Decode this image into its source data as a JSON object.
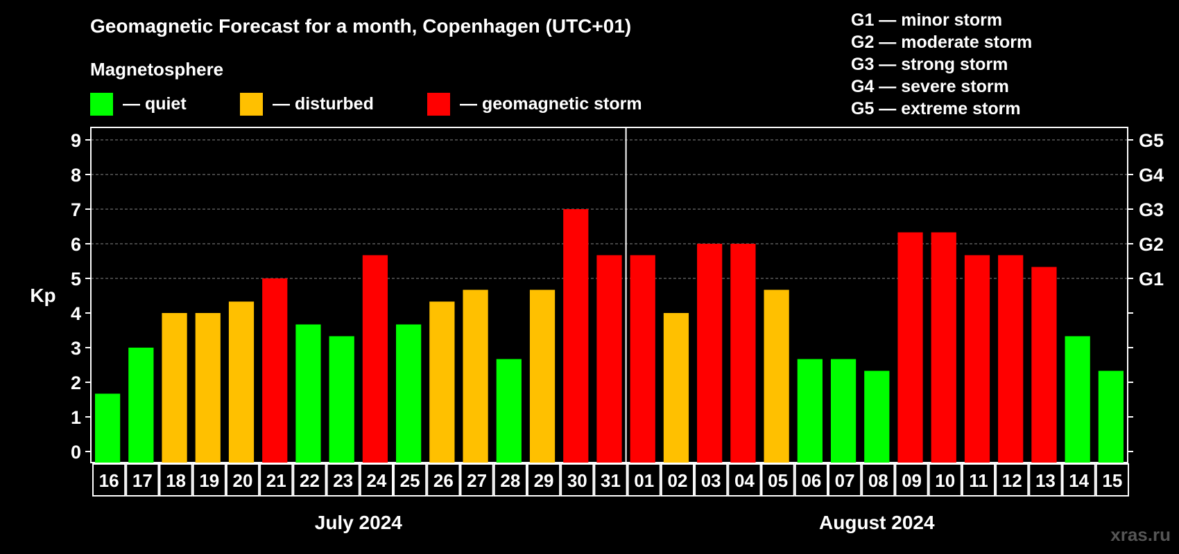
{
  "title": "Geomagnetic Forecast for a month, Copenhagen (UTC+01)",
  "legend": {
    "heading": "Magnetosphere",
    "items": [
      {
        "label": "— quiet",
        "color": "#00ff00"
      },
      {
        "label": "— disturbed",
        "color": "#ffc000"
      },
      {
        "label": "— geomagnetic storm",
        "color": "#ff0000"
      }
    ]
  },
  "storm_scale": [
    "G1 — minor storm",
    "G2 — moderate storm",
    "G3 — strong storm",
    "G4 — severe storm",
    "G5 — extreme storm"
  ],
  "watermark": "xras.ru",
  "chart_data": {
    "type": "bar",
    "ylabel": "Kp",
    "ylim": [
      0,
      9
    ],
    "yticks": [
      0,
      1,
      2,
      3,
      4,
      5,
      6,
      7,
      8,
      9
    ],
    "right_axis_labels": [
      {
        "kp": 5,
        "label": "G1"
      },
      {
        "kp": 6,
        "label": "G2"
      },
      {
        "kp": 7,
        "label": "G3"
      },
      {
        "kp": 8,
        "label": "G4"
      },
      {
        "kp": 9,
        "label": "G5"
      }
    ],
    "grid": true,
    "categories": [
      "16",
      "17",
      "18",
      "19",
      "20",
      "21",
      "22",
      "23",
      "24",
      "25",
      "26",
      "27",
      "28",
      "29",
      "30",
      "31",
      "01",
      "02",
      "03",
      "04",
      "05",
      "06",
      "07",
      "08",
      "09",
      "10",
      "11",
      "12",
      "13",
      "14",
      "15"
    ],
    "values": [
      1.67,
      3.0,
      4.0,
      4.0,
      4.33,
      5.0,
      3.67,
      3.33,
      5.67,
      3.67,
      4.33,
      4.67,
      2.67,
      4.67,
      7.0,
      5.67,
      5.67,
      4.0,
      6.0,
      6.0,
      4.67,
      2.67,
      2.67,
      2.33,
      6.33,
      6.33,
      5.67,
      5.67,
      5.33,
      3.33,
      2.33
    ],
    "levels": [
      "quiet",
      "quiet",
      "disturbed",
      "disturbed",
      "disturbed",
      "storm",
      "quiet",
      "quiet",
      "storm",
      "quiet",
      "disturbed",
      "disturbed",
      "quiet",
      "disturbed",
      "storm",
      "storm",
      "storm",
      "disturbed",
      "storm",
      "storm",
      "disturbed",
      "quiet",
      "quiet",
      "quiet",
      "storm",
      "storm",
      "storm",
      "storm",
      "storm",
      "quiet",
      "quiet"
    ],
    "level_colors": {
      "quiet": "#00ff00",
      "disturbed": "#ffc000",
      "storm": "#ff0000"
    },
    "months": [
      {
        "label": "July 2024",
        "count": 16
      },
      {
        "label": "August 2024",
        "count": 15
      }
    ]
  }
}
